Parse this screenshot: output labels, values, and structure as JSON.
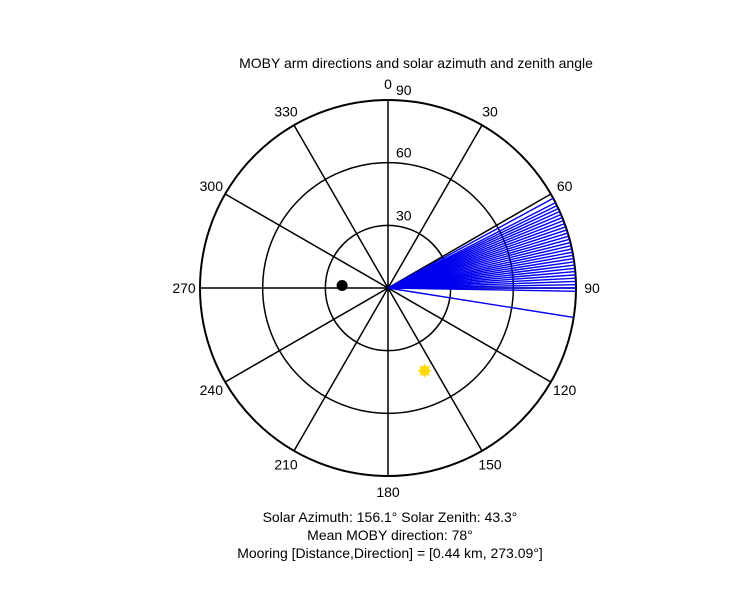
{
  "chart_data": {
    "type": "polar",
    "title": "MOBY arm directions and solar azimuth and zenith angle",
    "angle_ticks": [
      "0",
      "30",
      "60",
      "90",
      "120",
      "150",
      "180",
      "210",
      "240",
      "270",
      "300",
      "330"
    ],
    "radius_ticks": [
      "30",
      "60",
      "90"
    ],
    "rmax": 90,
    "arm_directions_deg": [
      61.5,
      63.0,
      64.0,
      65.0,
      66.0,
      67.0,
      68.0,
      69.0,
      70.0,
      71.0,
      72.0,
      73.0,
      74.0,
      75.0,
      76.0,
      77.0,
      78.0,
      79.0,
      80.0,
      81.0,
      82.0,
      83.0,
      84.0,
      85.0,
      86.0,
      87.0,
      88.0,
      89.0,
      90.0,
      91.0,
      99.0
    ],
    "solar_point": {
      "azimuth": 156.1,
      "zenith": 43.3
    },
    "mooring_point": {
      "direction": 273.09,
      "distance_radius": 22
    },
    "colors": {
      "arms": "#0000ee",
      "sun": "#ffd800",
      "mooring": "#000000",
      "grid": "#000000"
    },
    "annotations": [
      "Solar Azimuth: 156.1°   Solar Zenith: 43.3°",
      "Mean MOBY direction: 78°",
      "Mooring [Distance,Direction] = [0.44 km, 273.09°]"
    ]
  }
}
